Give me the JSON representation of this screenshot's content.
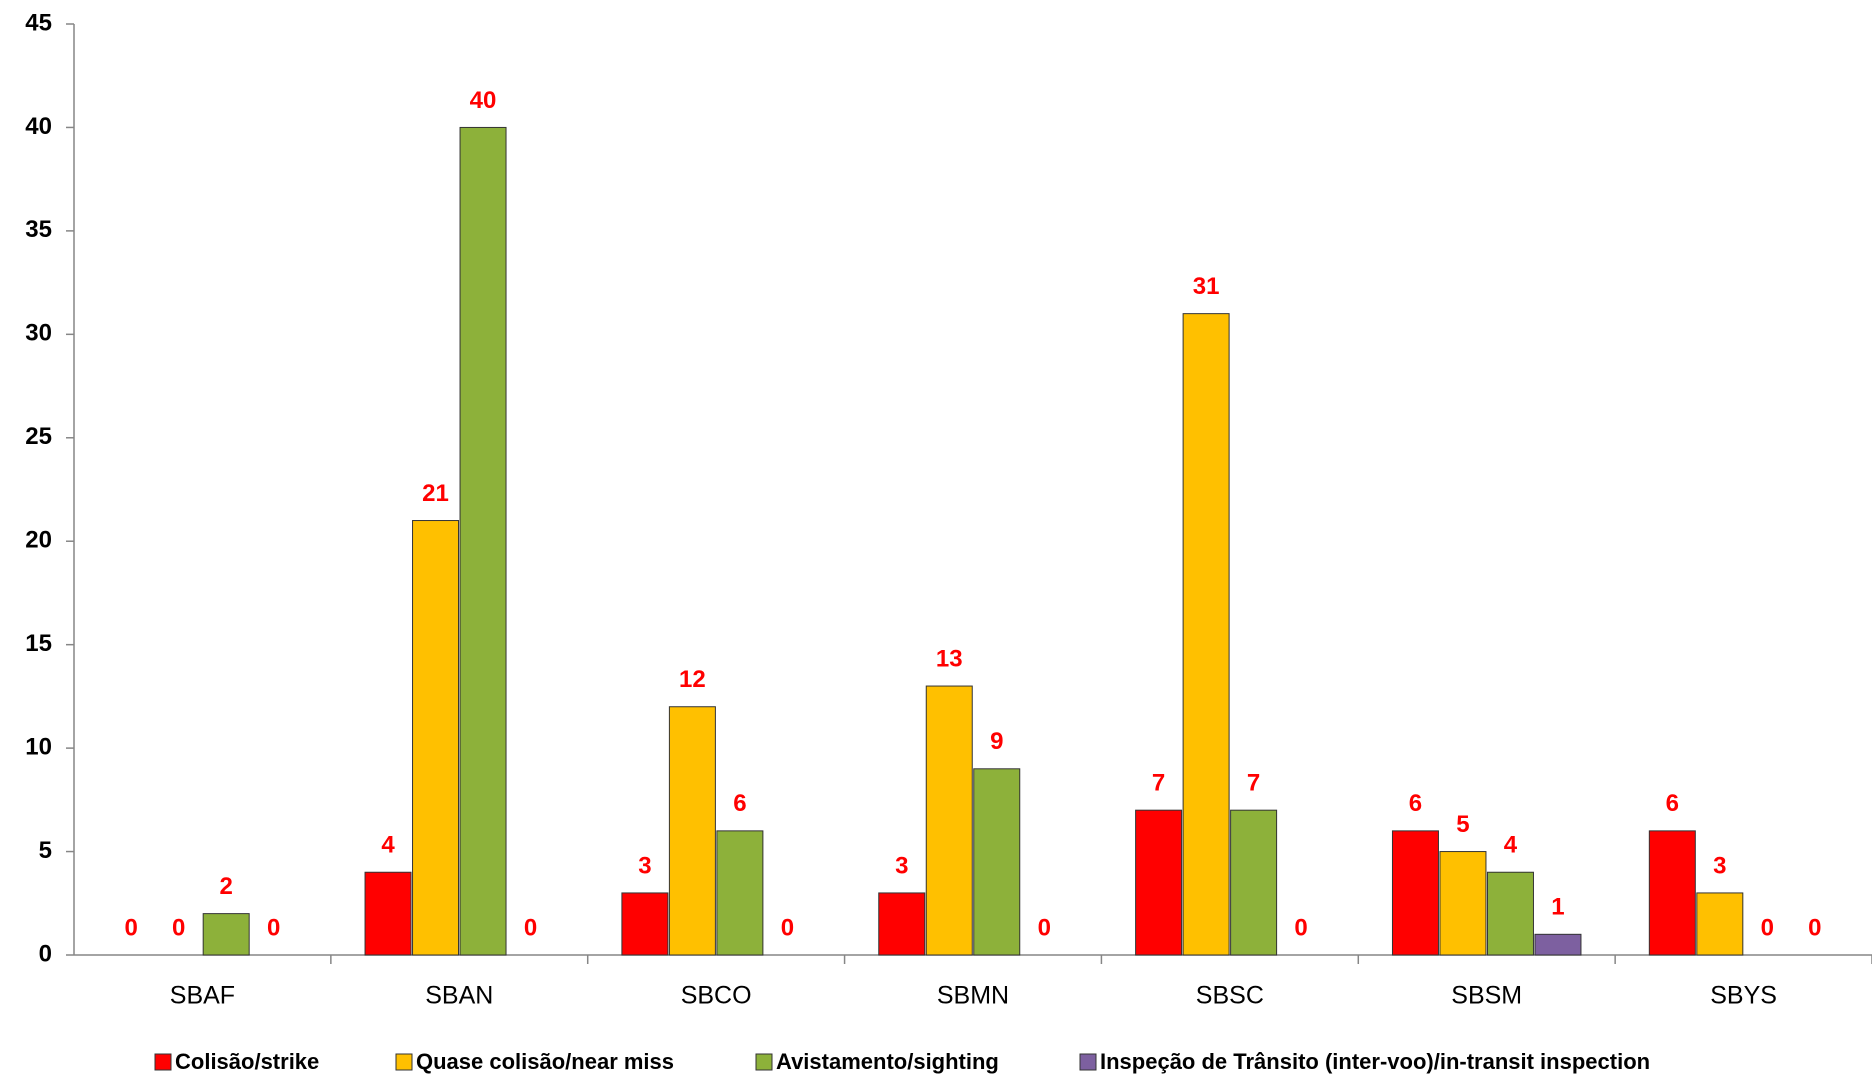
{
  "chart_data": {
    "type": "bar",
    "categories": [
      "SBAF",
      "SBAN",
      "SBCO",
      "SBMN",
      "SBSC",
      "SBSM",
      "SBYS"
    ],
    "series": [
      {
        "name": "Colisão/strike",
        "color": "#ff0000",
        "values": [
          0,
          4,
          3,
          3,
          7,
          6,
          6
        ]
      },
      {
        "name": "Quase colisão/near miss",
        "color": "#ffc000",
        "values": [
          0,
          21,
          12,
          13,
          31,
          5,
          3
        ]
      },
      {
        "name": "Avistamento/sighting",
        "color": "#8db13a",
        "values": [
          2,
          40,
          6,
          9,
          7,
          4,
          0
        ]
      },
      {
        "name": "Inspeção de Trânsito (inter-voo)/in-transit inspection",
        "color": "#7d60a0",
        "values": [
          0,
          0,
          0,
          0,
          0,
          1,
          0
        ]
      }
    ],
    "ylim": [
      0,
      45
    ],
    "yticks": [
      0,
      5,
      10,
      15,
      20,
      25,
      30,
      35,
      40,
      45
    ],
    "grid": false,
    "legend": "bottom"
  }
}
